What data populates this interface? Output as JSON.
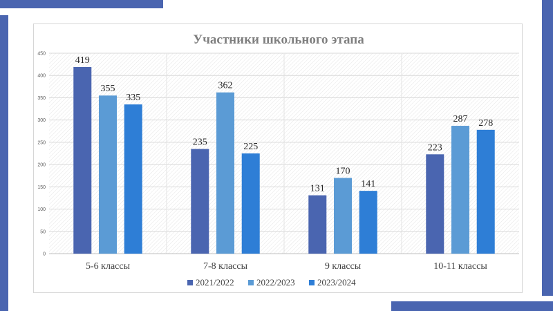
{
  "chart_data": {
    "type": "bar",
    "title": "Участники школьного этапа",
    "categories": [
      "5-6 классы",
      "7-8 классы",
      "9 классы",
      "10-11 классы"
    ],
    "series": [
      {
        "name": "2021/2022",
        "color": "#4a65b0",
        "values": [
          419,
          235,
          131,
          223
        ]
      },
      {
        "name": "2022/2023",
        "color": "#5b9bd5",
        "values": [
          355,
          362,
          170,
          287
        ]
      },
      {
        "name": "2023/2024",
        "color": "#2e7ed6",
        "values": [
          335,
          225,
          141,
          278
        ]
      }
    ],
    "ylim": [
      0,
      450
    ],
    "yticks": [
      "0",
      "50",
      "100",
      "150",
      "200",
      "250",
      "300",
      "350",
      "400",
      "450"
    ],
    "grid": true,
    "legend_position": "bottom"
  }
}
